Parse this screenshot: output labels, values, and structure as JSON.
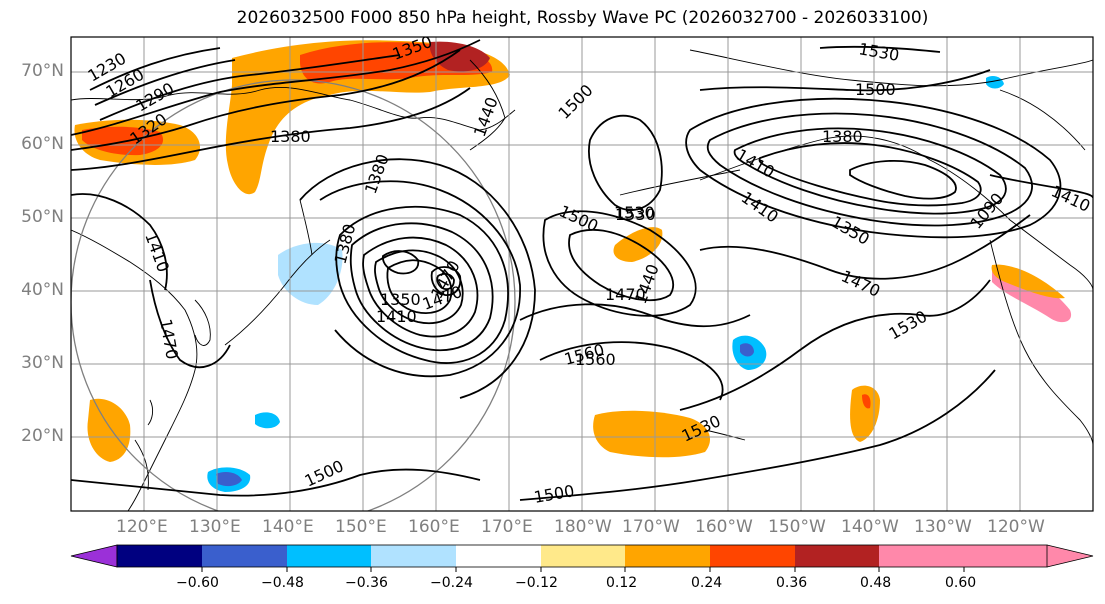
{
  "title": "2026032500 F000 850 hPa height, Rossby Wave PC (2026032700 - 2026033100)",
  "lat_labels": [
    "70°N",
    "60°N",
    "50°N",
    "40°N",
    "30°N",
    "20°N"
  ],
  "lon_labels": [
    "120°E",
    "130°E",
    "140°E",
    "150°E",
    "160°E",
    "170°E",
    "180°W",
    "170°W",
    "160°W",
    "150°W",
    "140°W",
    "130°W",
    "120°W"
  ],
  "contour_labels": [
    "1230",
    "1260",
    "1290",
    "1320",
    "1350",
    "1380",
    "1410",
    "1440",
    "1470",
    "1500",
    "1530",
    "1560",
    "1380",
    "1350",
    "1410",
    "1470",
    "1500",
    "1530",
    "1470",
    "1440",
    "1560",
    "1530",
    "1500",
    "1500",
    "1380",
    "1350",
    "1410",
    "1470",
    "1530",
    "1500",
    "1530",
    "1410",
    "1090",
    "1380",
    "1410",
    "1470"
  ],
  "colorbar": {
    "colors": [
      "#9b30d8",
      "#000080",
      "#3a5fcd",
      "#00bfff",
      "#b0e2ff",
      "#ffffff",
      "#ffe98a",
      "#ffa500",
      "#ff4500",
      "#b22222",
      "#ff88aa"
    ],
    "tick_labels": [
      "−0.60",
      "−0.48",
      "−0.36",
      "−0.24",
      "−0.12",
      "0.12",
      "0.24",
      "0.36",
      "0.48",
      "0.60"
    ]
  },
  "shading_colors": {
    "pos_light": "#ffe98a",
    "pos_orange": "#ffa500",
    "pos_red": "#ff4500",
    "pos_dark": "#b22222",
    "neg_light": "#b0e2ff",
    "neg_cyan": "#00bfff",
    "neg_blue": "#3a5fcd"
  }
}
